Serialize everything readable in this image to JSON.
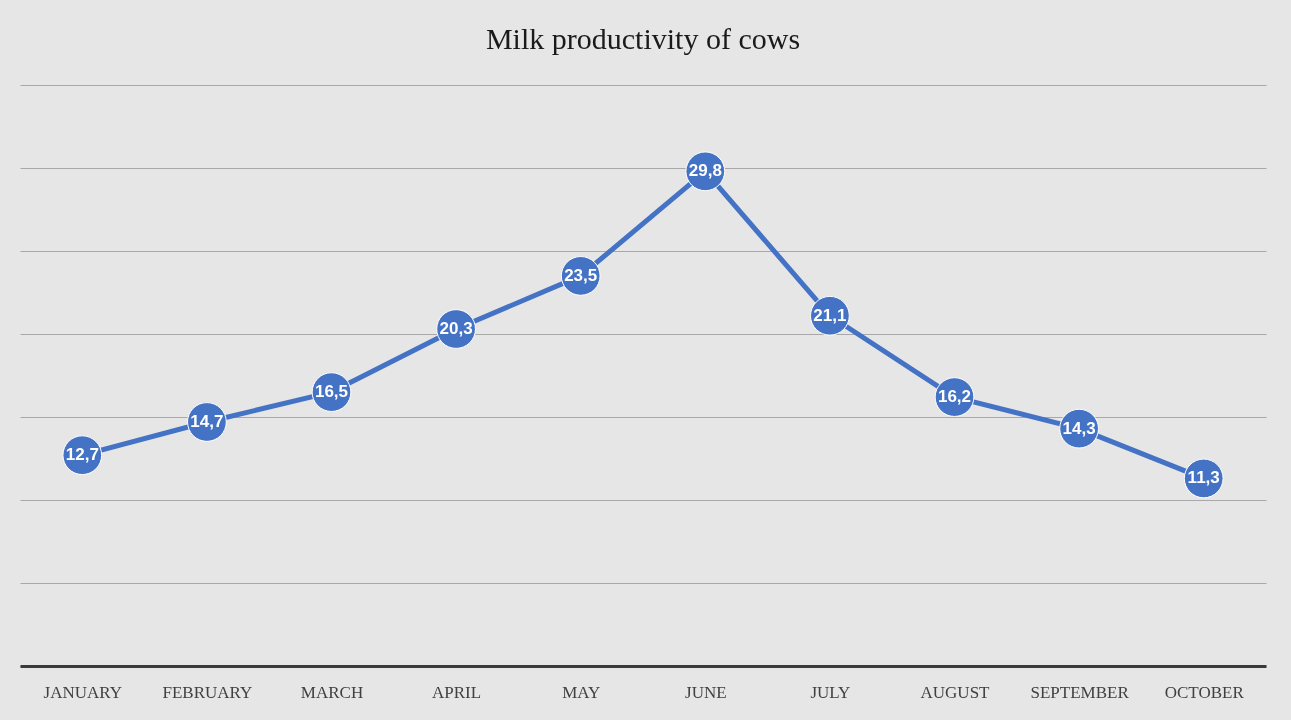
{
  "chart_data": {
    "type": "line",
    "title": "Milk productivity of cows",
    "categories": [
      "JANUARY",
      "FEBRUARY",
      "MARCH",
      "APRIL",
      "MAY",
      "JUNE",
      "JULY",
      "AUGUST",
      "SEPTEMBER",
      "OCTOBER"
    ],
    "series": [
      {
        "color": "#4472c4",
        "values": [
          12.7,
          14.7,
          16.5,
          20.3,
          23.5,
          29.8,
          21.1,
          16.2,
          14.3,
          11.3
        ],
        "value_labels": [
          "12,7",
          "14,7",
          "16,5",
          "20,3",
          "23,5",
          "29,8",
          "21,1",
          "16,2",
          "14,3",
          "11,3"
        ]
      }
    ],
    "ylim": [
      0,
      35
    ],
    "yticks": [
      {
        "value": 0,
        "label": null
      },
      {
        "value": 5,
        "label": null
      },
      {
        "value": 10,
        "label": null
      },
      {
        "value": 15,
        "label": null
      },
      {
        "value": 20,
        "label": null
      },
      {
        "value": 25,
        "label": null
      },
      {
        "value": 30,
        "label": null
      },
      {
        "value": 35,
        "label": null
      }
    ],
    "grid": "y",
    "tick_labels": "x",
    "marker": "circle",
    "line_style": "solid"
  }
}
